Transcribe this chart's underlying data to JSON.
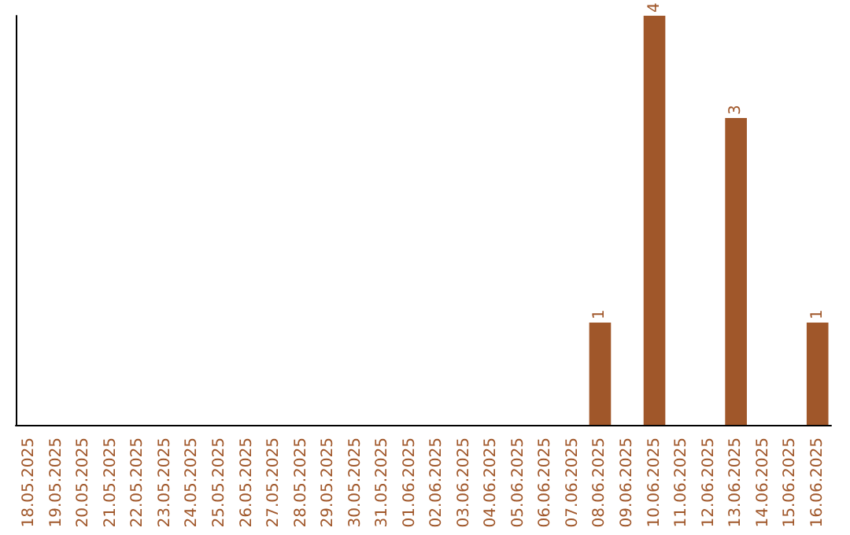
{
  "chart_data": {
    "type": "bar",
    "categories": [
      "18.05.2025",
      "19.05.2025",
      "20.05.2025",
      "21.05.2025",
      "22.05.2025",
      "23.05.2025",
      "24.05.2025",
      "25.05.2025",
      "26.05.2025",
      "27.05.2025",
      "28.05.2025",
      "29.05.2025",
      "30.05.2025",
      "31.05.2025",
      "01.06.2025",
      "02.06.2025",
      "03.06.2025",
      "04.06.2025",
      "05.06.2025",
      "06.06.2025",
      "07.06.2025",
      "08.06.2025",
      "09.06.2025",
      "10.06.2025",
      "11.06.2025",
      "12.06.2025",
      "13.06.2025",
      "14.06.2025",
      "15.06.2025",
      "16.06.2025"
    ],
    "values": [
      null,
      null,
      null,
      null,
      null,
      null,
      null,
      null,
      null,
      null,
      null,
      null,
      null,
      null,
      null,
      null,
      null,
      null,
      null,
      null,
      null,
      1,
      null,
      4,
      null,
      null,
      3,
      null,
      null,
      1
    ],
    "value_labels": [
      null,
      null,
      null,
      null,
      null,
      null,
      null,
      null,
      null,
      null,
      null,
      null,
      null,
      null,
      null,
      null,
      null,
      null,
      null,
      null,
      null,
      "1",
      null,
      "4",
      null,
      null,
      "3",
      null,
      null,
      "1"
    ],
    "color": "#a0572a",
    "tick_labels": "x",
    "grid": false
  }
}
